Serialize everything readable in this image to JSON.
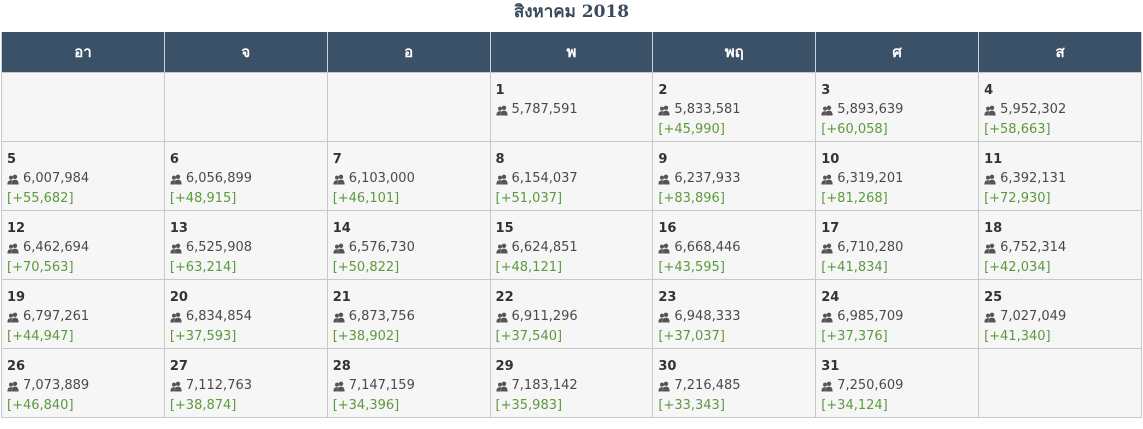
{
  "title": "สิงหาคม 2018",
  "weekdays": [
    "อา",
    "จ",
    "อ",
    "พ",
    "พฤ",
    "ศ",
    "ส"
  ],
  "icons": {
    "users": "users-icon"
  },
  "colors": {
    "header_bg": "#3b5168",
    "delta": "#5c9a3f",
    "cell_bg": "#f6f6f6"
  },
  "weeks": [
    [
      null,
      null,
      null,
      {
        "day": "1",
        "total": "5,787,591",
        "delta": ""
      },
      {
        "day": "2",
        "total": "5,833,581",
        "delta": "[+45,990]"
      },
      {
        "day": "3",
        "total": "5,893,639",
        "delta": "[+60,058]"
      },
      {
        "day": "4",
        "total": "5,952,302",
        "delta": "[+58,663]"
      }
    ],
    [
      {
        "day": "5",
        "total": "6,007,984",
        "delta": "[+55,682]"
      },
      {
        "day": "6",
        "total": "6,056,899",
        "delta": "[+48,915]"
      },
      {
        "day": "7",
        "total": "6,103,000",
        "delta": "[+46,101]"
      },
      {
        "day": "8",
        "total": "6,154,037",
        "delta": "[+51,037]"
      },
      {
        "day": "9",
        "total": "6,237,933",
        "delta": "[+83,896]"
      },
      {
        "day": "10",
        "total": "6,319,201",
        "delta": "[+81,268]"
      },
      {
        "day": "11",
        "total": "6,392,131",
        "delta": "[+72,930]"
      }
    ],
    [
      {
        "day": "12",
        "total": "6,462,694",
        "delta": "[+70,563]"
      },
      {
        "day": "13",
        "total": "6,525,908",
        "delta": "[+63,214]"
      },
      {
        "day": "14",
        "total": "6,576,730",
        "delta": "[+50,822]"
      },
      {
        "day": "15",
        "total": "6,624,851",
        "delta": "[+48,121]"
      },
      {
        "day": "16",
        "total": "6,668,446",
        "delta": "[+43,595]"
      },
      {
        "day": "17",
        "total": "6,710,280",
        "delta": "[+41,834]"
      },
      {
        "day": "18",
        "total": "6,752,314",
        "delta": "[+42,034]"
      }
    ],
    [
      {
        "day": "19",
        "total": "6,797,261",
        "delta": "[+44,947]"
      },
      {
        "day": "20",
        "total": "6,834,854",
        "delta": "[+37,593]"
      },
      {
        "day": "21",
        "total": "6,873,756",
        "delta": "[+38,902]"
      },
      {
        "day": "22",
        "total": "6,911,296",
        "delta": "[+37,540]"
      },
      {
        "day": "23",
        "total": "6,948,333",
        "delta": "[+37,037]"
      },
      {
        "day": "24",
        "total": "6,985,709",
        "delta": "[+37,376]"
      },
      {
        "day": "25",
        "total": "7,027,049",
        "delta": "[+41,340]"
      }
    ],
    [
      {
        "day": "26",
        "total": "7,073,889",
        "delta": "[+46,840]"
      },
      {
        "day": "27",
        "total": "7,112,763",
        "delta": "[+38,874]"
      },
      {
        "day": "28",
        "total": "7,147,159",
        "delta": "[+34,396]"
      },
      {
        "day": "29",
        "total": "7,183,142",
        "delta": "[+35,983]"
      },
      {
        "day": "30",
        "total": "7,216,485",
        "delta": "[+33,343]"
      },
      {
        "day": "31",
        "total": "7,250,609",
        "delta": "[+34,124]"
      },
      null
    ]
  ]
}
